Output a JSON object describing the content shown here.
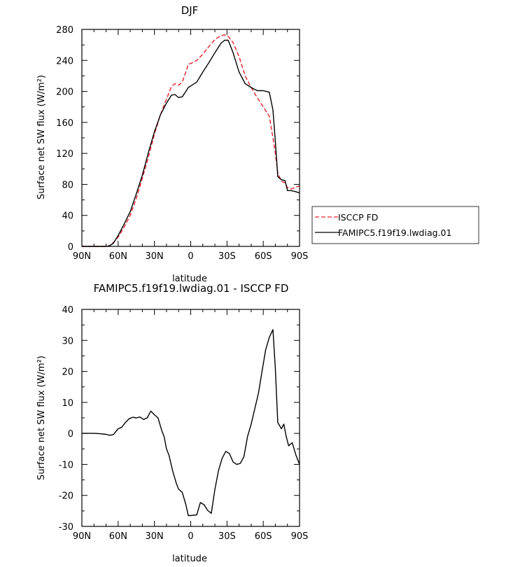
{
  "chart_data": [
    {
      "type": "line",
      "title": "DJF",
      "xlabel": "latitude",
      "ylabel": "Surface net SW flux (W/m²)",
      "xlim": [
        90,
        -90
      ],
      "ylim": [
        0,
        280
      ],
      "x_ticks": [
        90,
        60,
        30,
        0,
        -30,
        -60,
        -90
      ],
      "x_tick_labels": [
        "90N",
        "60N",
        "30N",
        "0",
        "30S",
        "60S",
        "90S"
      ],
      "y_ticks": [
        0,
        40,
        80,
        120,
        160,
        200,
        240,
        280
      ],
      "legend": "right-outside",
      "series": [
        {
          "name": "ISCCP FD",
          "color": "#e8202a",
          "dash": "dashed",
          "x": [
            90,
            85,
            80,
            75,
            70,
            67,
            64,
            60,
            55,
            50,
            45,
            40,
            35,
            30,
            25,
            20,
            16,
            13,
            10,
            7,
            4,
            2,
            0,
            -5,
            -10,
            -15,
            -20,
            -25,
            -28,
            -31,
            -35,
            -40,
            -45,
            -50,
            -55,
            -60,
            -65,
            -68,
            -70,
            -72,
            -75,
            -78,
            -80,
            -83,
            -86,
            -90
          ],
          "y": [
            0,
            0,
            0,
            0,
            0,
            1,
            5,
            12,
            25,
            40,
            62,
            88,
            115,
            145,
            170,
            190,
            206,
            210,
            208,
            212,
            225,
            235,
            236,
            240,
            248,
            258,
            267,
            272,
            273,
            271,
            263,
            245,
            220,
            205,
            192,
            180,
            168,
            140,
            120,
            95,
            84,
            82,
            76,
            74,
            76,
            78
          ]
        },
        {
          "name": "FAMIPC5.f19f19.lwdiag.01",
          "color": "#000000",
          "dash": "solid",
          "x": [
            90,
            85,
            80,
            75,
            70,
            67,
            64,
            60,
            55,
            50,
            45,
            40,
            35,
            30,
            25,
            20,
            16,
            13,
            10,
            7,
            4,
            2,
            0,
            -5,
            -10,
            -15,
            -20,
            -25,
            -28,
            -31,
            -35,
            -40,
            -45,
            -50,
            -55,
            -60,
            -65,
            -68,
            -70,
            -72,
            -75,
            -78,
            -80,
            -83,
            -86,
            -90
          ],
          "y": [
            0,
            0,
            0,
            0,
            0,
            1,
            4,
            14,
            29,
            45,
            68,
            92,
            121,
            148,
            170,
            185,
            195,
            196,
            192,
            193,
            200,
            205,
            207,
            212,
            225,
            237,
            250,
            262,
            266,
            266,
            250,
            225,
            210,
            205,
            201,
            201,
            199,
            176,
            136,
            90,
            86,
            85,
            72,
            72,
            71,
            69
          ]
        }
      ]
    },
    {
      "type": "line",
      "title": "FAMIPC5.f19f19.lwdiag.01 - ISCCP FD",
      "xlabel": "latitude",
      "ylabel": "Surface net SW flux (W/m²)",
      "xlim": [
        90,
        -90
      ],
      "ylim": [
        -30,
        40
      ],
      "x_ticks": [
        90,
        60,
        30,
        0,
        -30,
        -60,
        -90
      ],
      "x_tick_labels": [
        "90N",
        "60N",
        "30N",
        "0",
        "30S",
        "60S",
        "90S"
      ],
      "y_ticks": [
        -30,
        -20,
        -10,
        0,
        10,
        20,
        30,
        40
      ],
      "series": [
        {
          "color": "#000000",
          "dash": "solid",
          "x": [
            90,
            85,
            80,
            75,
            70,
            67,
            64,
            60,
            57,
            54,
            51,
            48,
            45,
            42,
            39,
            36,
            33,
            30,
            27,
            24,
            22,
            20,
            18,
            15,
            12,
            10,
            7,
            4,
            2,
            0,
            -5,
            -8,
            -11,
            -14,
            -17,
            -20,
            -23,
            -26,
            -29,
            -32,
            -35,
            -38,
            -41,
            -44,
            -47,
            -50,
            -53,
            -56,
            -59,
            -62,
            -65,
            -68,
            -70,
            -72,
            -75,
            -77,
            -79,
            -81,
            -84,
            -87,
            -90
          ],
          "y": [
            0,
            0,
            0,
            -0.1,
            -0.3,
            -0.6,
            -0.4,
            1.5,
            2,
            3.5,
            4.7,
            5.2,
            5,
            5.3,
            4.5,
            5,
            7.2,
            6,
            5,
            1,
            -1,
            -5,
            -7,
            -12,
            -16,
            -18,
            -19,
            -23,
            -26.5,
            -26.5,
            -26.3,
            -22.3,
            -23,
            -24.8,
            -25.8,
            -18,
            -12,
            -8,
            -5.8,
            -6.5,
            -9.2,
            -10,
            -9.7,
            -7.5,
            -1,
            3,
            8,
            13,
            20,
            27,
            31,
            33.5,
            21,
            3.5,
            1.5,
            3,
            -1,
            -4,
            -3,
            -7,
            -10
          ]
        }
      ]
    }
  ]
}
